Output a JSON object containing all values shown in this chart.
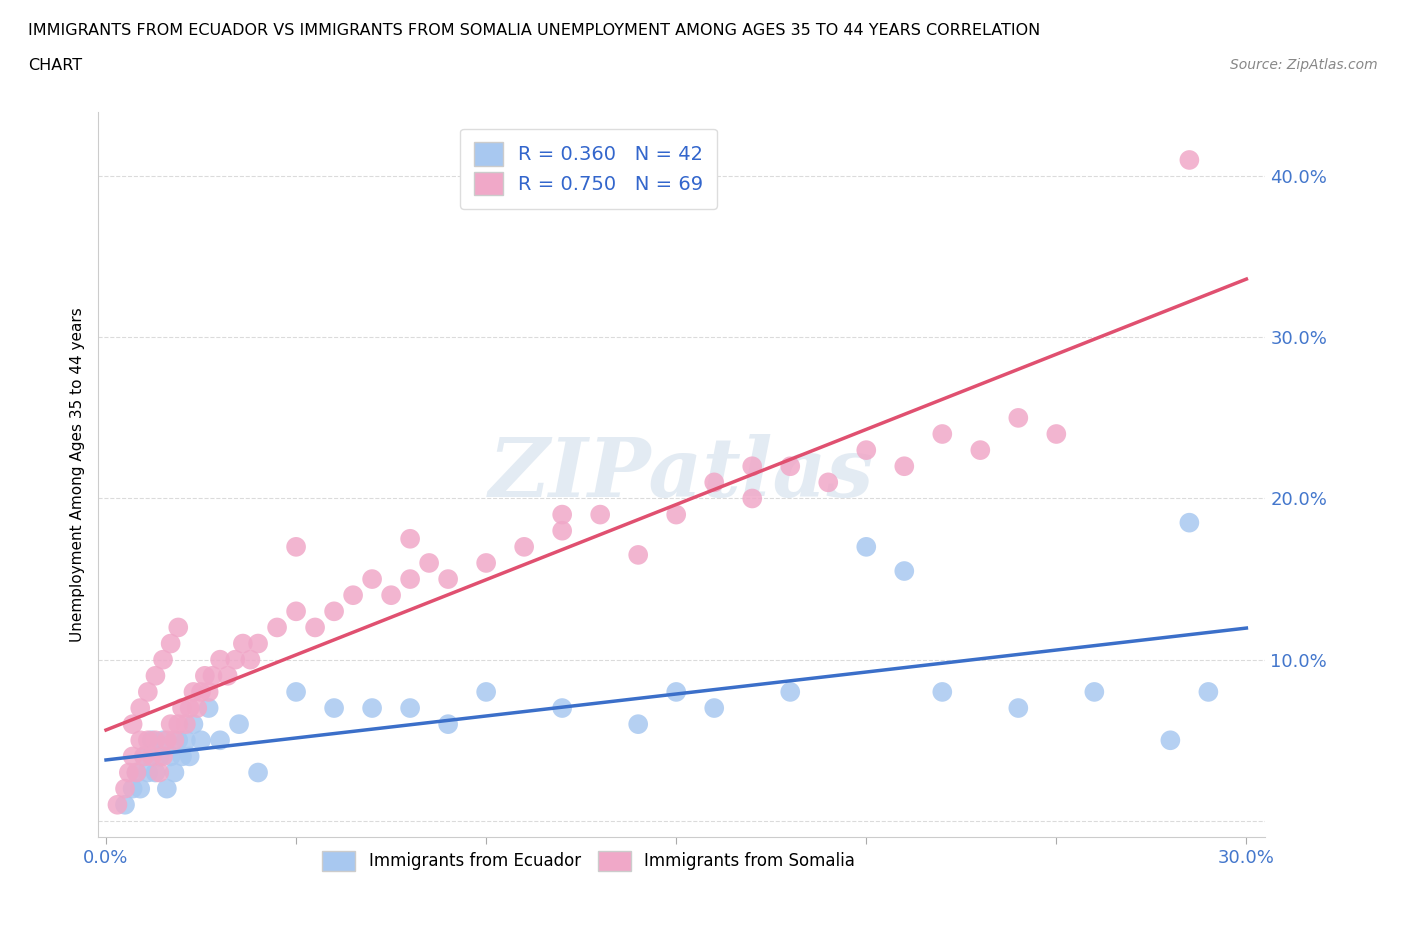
{
  "title_line1": "IMMIGRANTS FROM ECUADOR VS IMMIGRANTS FROM SOMALIA UNEMPLOYMENT AMONG AGES 35 TO 44 YEARS CORRELATION",
  "title_line2": "CHART",
  "source": "Source: ZipAtlas.com",
  "ylabel_label": "Unemployment Among Ages 35 to 44 years",
  "xlim": [
    -0.002,
    0.305
  ],
  "ylim": [
    -0.01,
    0.44
  ],
  "ecuador_color": "#a8c8f0",
  "somalia_color": "#f0a8c8",
  "ecuador_line_color": "#3b6fc9",
  "somalia_line_color": "#e05070",
  "ecuador_R": 0.36,
  "ecuador_N": 42,
  "somalia_R": 0.75,
  "somalia_N": 69,
  "watermark_text": "ZIPatlas",
  "legend_top_labels": [
    "R = 0.360   N = 42",
    "R = 0.750   N = 69"
  ],
  "legend_bottom_labels": [
    "Immigrants from Ecuador",
    "Immigrants from Somalia"
  ],
  "ec_x": [
    0.005,
    0.007,
    0.008,
    0.009,
    0.01,
    0.011,
    0.012,
    0.013,
    0.014,
    0.015,
    0.016,
    0.017,
    0.018,
    0.019,
    0.02,
    0.021,
    0.022,
    0.023,
    0.025,
    0.027,
    0.03,
    0.035,
    0.04,
    0.05,
    0.06,
    0.07,
    0.08,
    0.09,
    0.1,
    0.12,
    0.14,
    0.16,
    0.18,
    0.2,
    0.22,
    0.24,
    0.26,
    0.28,
    0.285,
    0.29,
    0.21,
    0.15
  ],
  "ec_y": [
    0.01,
    0.02,
    0.03,
    0.02,
    0.04,
    0.03,
    0.05,
    0.03,
    0.04,
    0.05,
    0.02,
    0.04,
    0.03,
    0.05,
    0.04,
    0.05,
    0.04,
    0.06,
    0.05,
    0.07,
    0.05,
    0.06,
    0.03,
    0.08,
    0.07,
    0.07,
    0.07,
    0.06,
    0.08,
    0.07,
    0.06,
    0.07,
    0.08,
    0.17,
    0.08,
    0.07,
    0.08,
    0.05,
    0.185,
    0.08,
    0.155,
    0.08
  ],
  "so_x": [
    0.003,
    0.005,
    0.006,
    0.007,
    0.008,
    0.009,
    0.01,
    0.011,
    0.012,
    0.013,
    0.014,
    0.015,
    0.016,
    0.017,
    0.018,
    0.019,
    0.02,
    0.021,
    0.022,
    0.023,
    0.024,
    0.025,
    0.026,
    0.027,
    0.028,
    0.03,
    0.032,
    0.034,
    0.036,
    0.038,
    0.04,
    0.045,
    0.05,
    0.055,
    0.06,
    0.065,
    0.07,
    0.075,
    0.08,
    0.085,
    0.09,
    0.1,
    0.11,
    0.12,
    0.13,
    0.14,
    0.15,
    0.16,
    0.17,
    0.18,
    0.19,
    0.2,
    0.21,
    0.22,
    0.23,
    0.24,
    0.25,
    0.007,
    0.009,
    0.011,
    0.013,
    0.015,
    0.017,
    0.019,
    0.05,
    0.08,
    0.12,
    0.17,
    0.285
  ],
  "so_y": [
    0.01,
    0.02,
    0.03,
    0.04,
    0.03,
    0.05,
    0.04,
    0.05,
    0.04,
    0.05,
    0.03,
    0.04,
    0.05,
    0.06,
    0.05,
    0.06,
    0.07,
    0.06,
    0.07,
    0.08,
    0.07,
    0.08,
    0.09,
    0.08,
    0.09,
    0.1,
    0.09,
    0.1,
    0.11,
    0.1,
    0.11,
    0.12,
    0.13,
    0.12,
    0.13,
    0.14,
    0.15,
    0.14,
    0.15,
    0.16,
    0.15,
    0.16,
    0.17,
    0.18,
    0.19,
    0.165,
    0.19,
    0.21,
    0.2,
    0.22,
    0.21,
    0.23,
    0.22,
    0.24,
    0.23,
    0.25,
    0.24,
    0.06,
    0.07,
    0.08,
    0.09,
    0.1,
    0.11,
    0.12,
    0.17,
    0.175,
    0.19,
    0.22,
    0.41
  ]
}
